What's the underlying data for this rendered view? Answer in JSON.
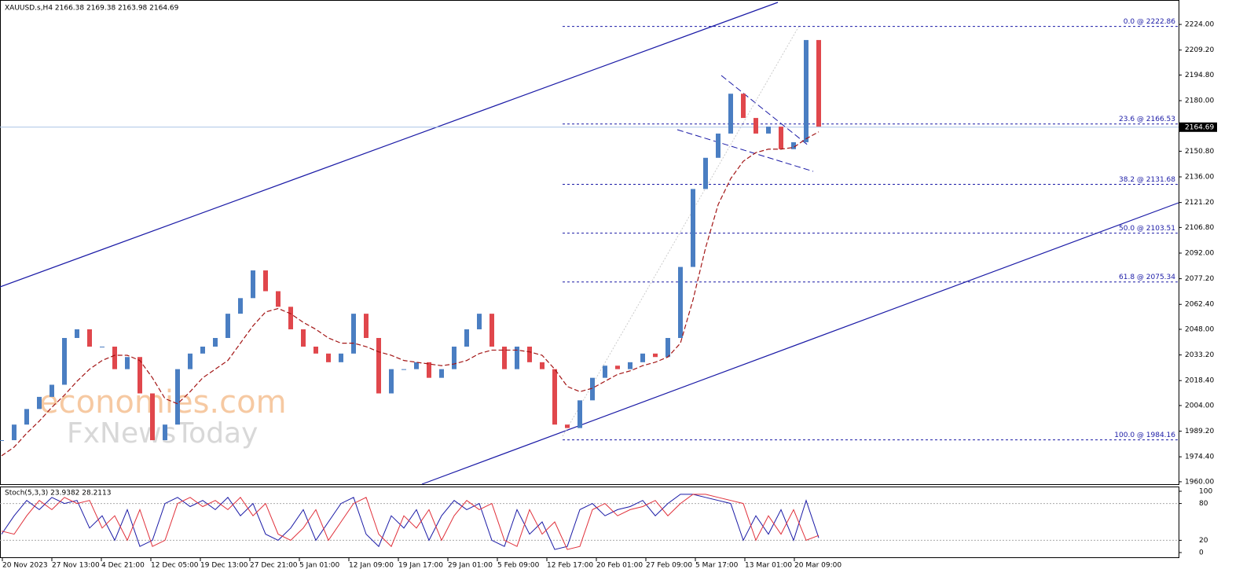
{
  "chart_data": {
    "type": "candlestick",
    "title": "XAUUSD.s,H4  2166.38 2169.38 2163.98 2164.69",
    "watermark": [
      "economies.com",
      "FxNewsToday"
    ],
    "x_labels": [
      "20 Nov 2023",
      "27 Nov 13:00",
      "4 Dec 21:00",
      "12 Dec 05:00",
      "19 Dec 13:00",
      "27 Dec 21:00",
      "5 Jan 01:00",
      "12 Jan 09:00",
      "19 Jan 17:00",
      "29 Jan 01:00",
      "5 Feb 09:00",
      "12 Feb 17:00",
      "20 Feb 01:00",
      "27 Feb 09:00",
      "5 Mar 17:00",
      "13 Mar 01:00",
      "20 Mar 09:00"
    ],
    "series": [
      {
        "name": "Price",
        "color": "#4a7ec2",
        "down_color": "#e0474c",
        "values": [
          1984,
          1993,
          2002,
          2009,
          2016,
          2043,
          2048,
          2038,
          2038,
          2025,
          2032,
          2011,
          1984,
          1993,
          2025,
          2034,
          2038,
          2043,
          2057,
          2066,
          2082,
          2070,
          2061,
          2048,
          2038,
          2034,
          2029,
          2034,
          2057,
          2043,
          2011,
          2025,
          2025,
          2029,
          2020,
          2025,
          2038,
          2048,
          2057,
          2038,
          2025,
          2038,
          2029,
          2025,
          1993,
          1991,
          2007,
          2020,
          2027,
          2025,
          2029,
          2034,
          2032,
          2043,
          2084,
          2129,
          2147,
          2161,
          2184,
          2170,
          2161,
          2165,
          2152,
          2156,
          2215,
          2165
        ]
      },
      {
        "name": "MA",
        "color": "#a31515",
        "values": [
          1975,
          1980,
          1988,
          1995,
          2003,
          2010,
          2018,
          2025,
          2030,
          2033,
          2033,
          2030,
          2020,
          2008,
          2005,
          2012,
          2020,
          2025,
          2030,
          2040,
          2050,
          2058,
          2060,
          2057,
          2052,
          2048,
          2043,
          2040,
          2040,
          2038,
          2035,
          2033,
          2030,
          2029,
          2028,
          2027,
          2028,
          2030,
          2034,
          2036,
          2036,
          2036,
          2035,
          2033,
          2025,
          2015,
          2012,
          2014,
          2018,
          2022,
          2024,
          2027,
          2029,
          2032,
          2040,
          2065,
          2095,
          2120,
          2135,
          2145,
          2150,
          2152,
          2152,
          2153,
          2158,
          2162
        ]
      }
    ],
    "ylim": [
      1958.6,
      2238.1
    ],
    "yticks": [
      {
        "value": 2224,
        "label": "2224.00"
      },
      {
        "value": 2209.2,
        "label": "2209.20"
      },
      {
        "value": 2194.8,
        "label": "2194.80"
      },
      {
        "value": 2180,
        "label": "2180.00"
      },
      {
        "value": 2150.8,
        "label": "2150.80"
      },
      {
        "value": 2136,
        "label": "2136.00"
      },
      {
        "value": 2121.2,
        "label": "2121.20"
      },
      {
        "value": 2106.8,
        "label": "2106.80"
      },
      {
        "value": 2092,
        "label": "2092.00"
      },
      {
        "value": 2077.2,
        "label": "2077.20"
      },
      {
        "value": 2062.4,
        "label": "2062.40"
      },
      {
        "value": 2048,
        "label": "2048.00"
      },
      {
        "value": 2033.2,
        "label": "2033.20"
      },
      {
        "value": 2018.4,
        "label": "2018.40"
      },
      {
        "value": 2004,
        "label": "2004.00"
      },
      {
        "value": 1989.2,
        "label": "1989.20"
      },
      {
        "value": 1974.4,
        "label": "1974.40"
      },
      {
        "value": 1960,
        "label": "1960.00"
      }
    ],
    "current_price": {
      "value": 2164.69,
      "label": "2164.69"
    },
    "fib_levels": [
      {
        "value": 2222.86,
        "label": "0.0 @ 2222.86"
      },
      {
        "value": 2166.53,
        "label": "23.6 @ 2166.53"
      },
      {
        "value": 2131.68,
        "label": "38.2 @ 2131.68"
      },
      {
        "value": 2103.51,
        "label": "50.0 @ 2103.51"
      },
      {
        "value": 2075.34,
        "label": "61.8 @ 2075.34"
      },
      {
        "value": 1984.16,
        "label": "100.0 @ 1984.16"
      }
    ],
    "stochastic": {
      "title": "Stoch(5,3,3) 23.9382 28.2113",
      "ylim": [
        0,
        100
      ],
      "yticks": [
        100,
        80,
        20,
        0
      ],
      "levels": [
        80,
        20
      ],
      "series": [
        {
          "name": "Main",
          "color": "#1a1aa6",
          "values": [
            30,
            60,
            85,
            70,
            90,
            80,
            85,
            40,
            60,
            20,
            70,
            10,
            20,
            80,
            90,
            75,
            85,
            70,
            90,
            60,
            80,
            30,
            20,
            40,
            70,
            20,
            50,
            80,
            90,
            30,
            10,
            60,
            40,
            70,
            20,
            60,
            85,
            70,
            80,
            20,
            10,
            70,
            30,
            50,
            5,
            10,
            70,
            80,
            60,
            70,
            75,
            85,
            60,
            80,
            95,
            95,
            90,
            85,
            80,
            20,
            60,
            30,
            70,
            20,
            85,
            24
          ]
        },
        {
          "name": "Signal",
          "color": "#e0303a",
          "values": [
            35,
            30,
            60,
            85,
            70,
            90,
            80,
            85,
            40,
            60,
            20,
            70,
            10,
            20,
            80,
            90,
            75,
            85,
            70,
            90,
            60,
            80,
            30,
            20,
            40,
            70,
            20,
            50,
            80,
            90,
            30,
            10,
            60,
            40,
            70,
            20,
            60,
            85,
            70,
            80,
            20,
            10,
            70,
            30,
            50,
            5,
            10,
            70,
            80,
            60,
            70,
            75,
            85,
            60,
            80,
            95,
            95,
            90,
            85,
            80,
            20,
            60,
            30,
            70,
            20,
            28
          ]
        }
      ]
    }
  }
}
